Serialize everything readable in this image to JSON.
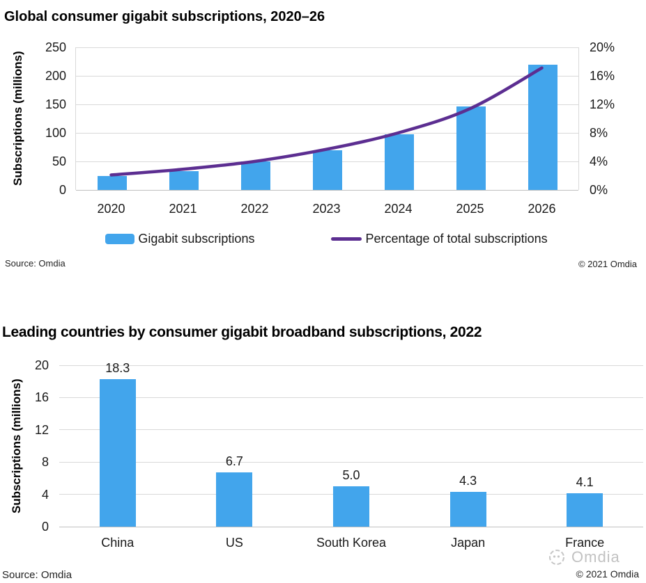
{
  "chart_data": [
    {
      "type": "combo-bar-line",
      "title": "Global consumer gigabit subscriptions, 2020–26",
      "categories": [
        "2020",
        "2021",
        "2022",
        "2023",
        "2024",
        "2025",
        "2026"
      ],
      "series": [
        {
          "name": "Gigabit subscriptions",
          "type": "bar",
          "axis": "left",
          "color": "#42a5ec",
          "values": [
            24,
            33,
            50,
            70,
            98,
            146,
            220
          ]
        },
        {
          "name": "Percentage of total subscriptions",
          "type": "line",
          "axis": "right",
          "color": "#5c2e91",
          "values": [
            2.1,
            2.9,
            4.0,
            5.7,
            8.0,
            11.4,
            17.1
          ]
        }
      ],
      "ylabel_left": "Subscriptions (millions)",
      "y_left_ticks": [
        0,
        50,
        100,
        150,
        200,
        250
      ],
      "y_left_range": [
        0,
        250
      ],
      "y_right_ticks": [
        "0%",
        "4%",
        "8%",
        "12%",
        "16%",
        "20%"
      ],
      "y_right_range": [
        0,
        20
      ],
      "grid": true,
      "legend_position": "bottom",
      "source": "Source: Omdia",
      "copyright": "© 2021 Omdia"
    },
    {
      "type": "bar",
      "title": "Leading countries by consumer gigabit broadband subscriptions, 2022",
      "categories": [
        "China",
        "US",
        "South Korea",
        "Japan",
        "France"
      ],
      "values": [
        18.3,
        6.7,
        5.0,
        4.3,
        4.1
      ],
      "data_labels": [
        "18.3",
        "6.7",
        "5.0",
        "4.3",
        "4.1"
      ],
      "ylabel": "Subscriptions (millions)",
      "y_ticks": [
        0,
        4,
        8,
        12,
        16,
        20
      ],
      "ylim": [
        0,
        20
      ],
      "bar_color": "#42a5ec",
      "grid": true,
      "source": "Source: Omdia",
      "copyright": "© 2021 Omdia",
      "watermark": "Omdia"
    }
  ],
  "colors": {
    "bar_blue": "#42a5ec",
    "line_purple": "#5c2e91",
    "gridline": "#d9d9d9",
    "watermark_gray": "#c2c2c2"
  }
}
